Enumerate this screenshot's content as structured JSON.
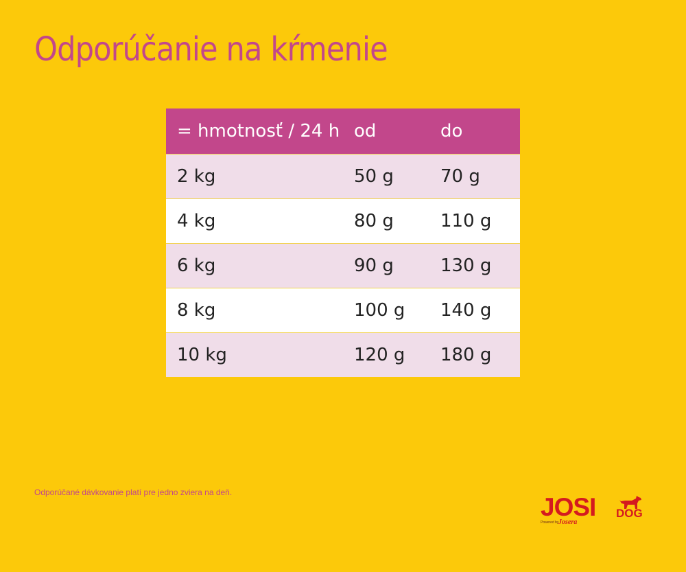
{
  "title": "Odporúčanie na kŕmenie",
  "table": {
    "headers": [
      "= hmotnosť / 24 h",
      "od",
      "do"
    ],
    "rows": [
      [
        "2 kg",
        "50 g",
        "70 g"
      ],
      [
        "4 kg",
        "80 g",
        "110 g"
      ],
      [
        "6 kg",
        "90 g",
        "130 g"
      ],
      [
        "8 kg",
        "100 g",
        "140 g"
      ],
      [
        "10 kg",
        "120 g",
        "180 g"
      ]
    ]
  },
  "note": "Odporúčané dávkovanie platí pre jedno zviera na deň.",
  "logo": {
    "main": "JOSI",
    "sub": "DOG",
    "powered": "Powered by",
    "brand": "Josera"
  },
  "colors": {
    "background": "#fcc90a",
    "accent": "#c2478b",
    "row_alt": "#f0dde9",
    "logo_red": "#d41a1f"
  }
}
